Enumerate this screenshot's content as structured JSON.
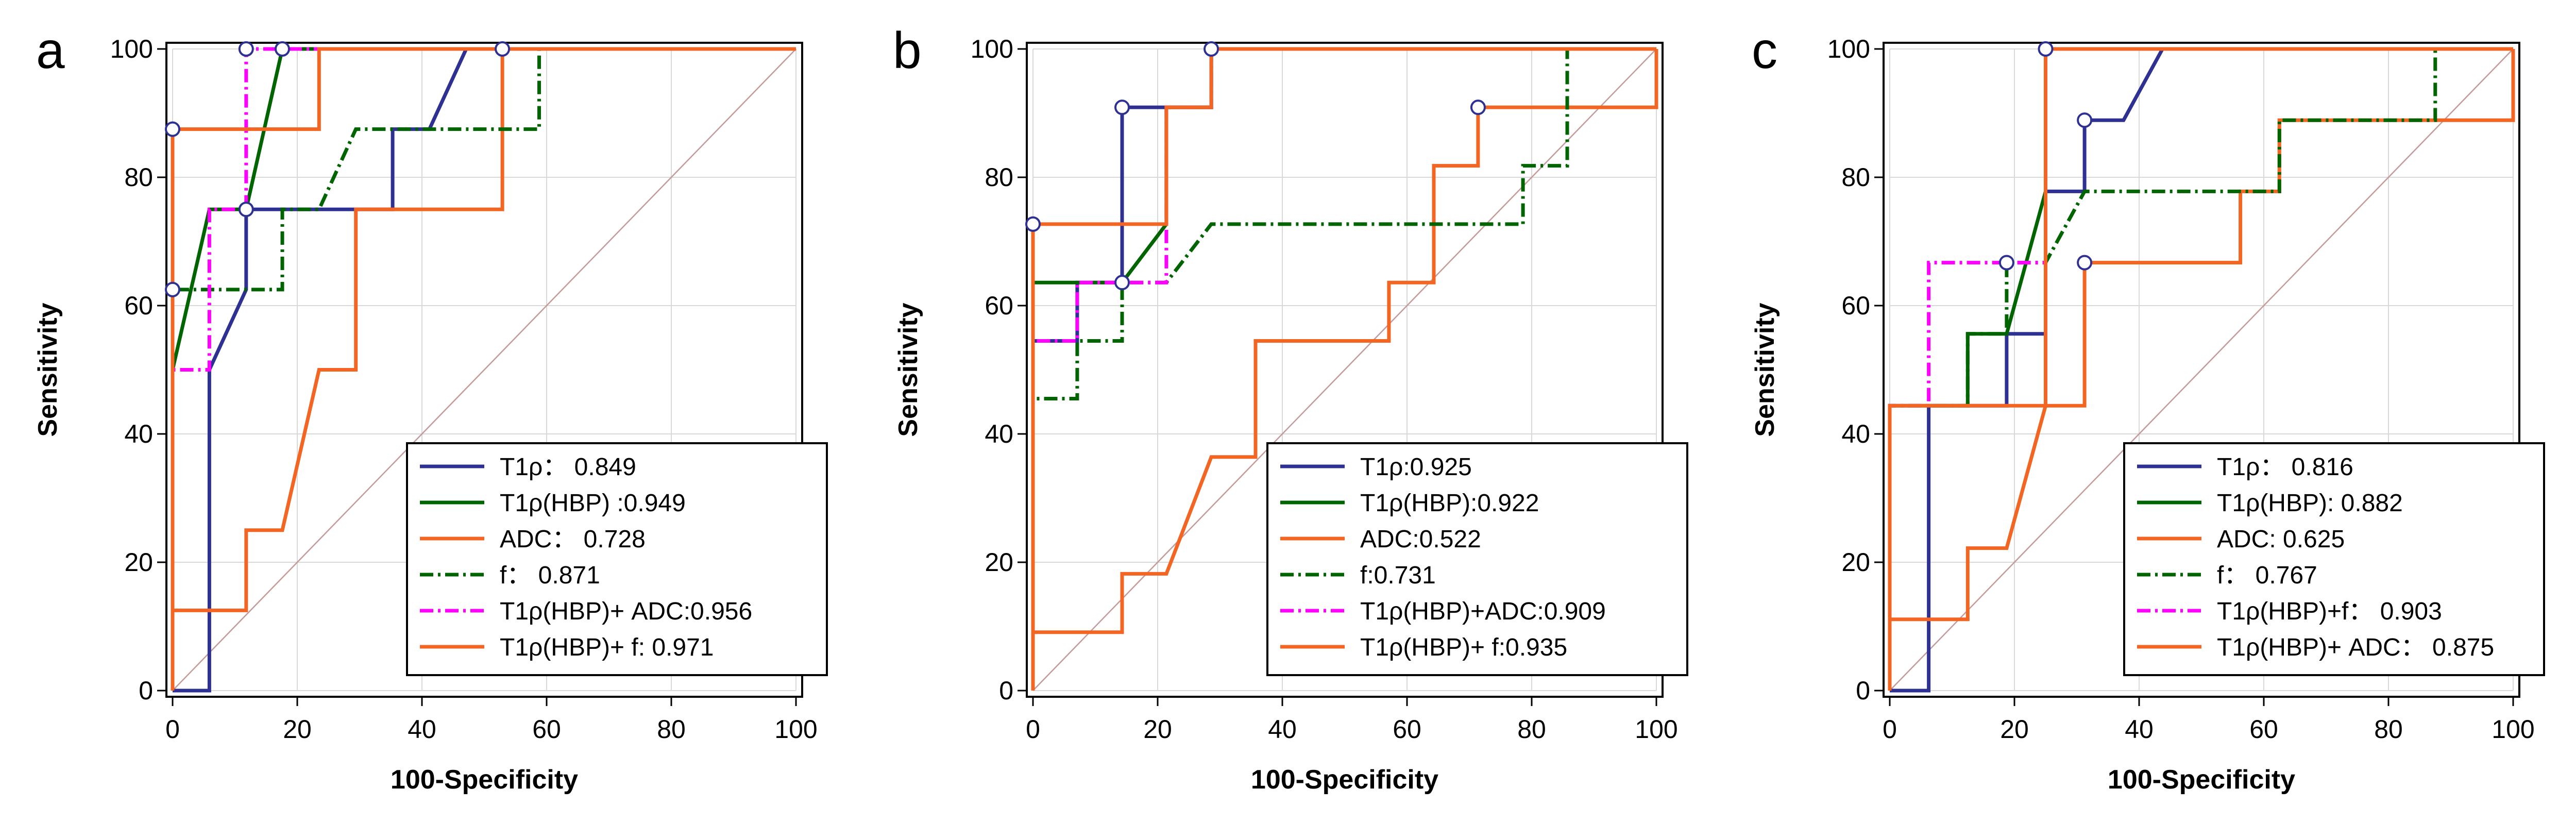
{
  "chart_data": [
    {
      "type": "line",
      "panel_label": "a",
      "xlabel": "100-Specificity",
      "ylabel": "Sensitivity",
      "xlim": [
        0,
        100
      ],
      "ylim": [
        0,
        100
      ],
      "xticks": [
        "0",
        "20",
        "40",
        "60",
        "80",
        "100"
      ],
      "yticks": [
        "0",
        "20",
        "40",
        "60",
        "80",
        "100"
      ],
      "grid": true,
      "legend_position": "bottom-right",
      "reference_line": [
        [
          0,
          0
        ],
        [
          100,
          100
        ]
      ],
      "series": [
        {
          "name": "T1ρ：   0.849",
          "color": "#2e3192",
          "dash": "solid",
          "points": [
            [
              0,
              0
            ],
            [
              5.9,
              0
            ],
            [
              5.9,
              50
            ],
            [
              11.8,
              62.5
            ],
            [
              11.8,
              75
            ],
            [
              35.3,
              75
            ],
            [
              35.3,
              87.5
            ],
            [
              41.2,
              87.5
            ],
            [
              47.1,
              100
            ],
            [
              100,
              100
            ]
          ],
          "markers": [
            [
              11.8,
              75
            ]
          ]
        },
        {
          "name": "T1ρ(HBP) :0.949",
          "color": "#006400",
          "dash": "solid",
          "points": [
            [
              0,
              0
            ],
            [
              0,
              50
            ],
            [
              5.9,
              75
            ],
            [
              11.8,
              75
            ],
            [
              17.6,
              100
            ],
            [
              100,
              100
            ]
          ],
          "markers": [
            [
              17.6,
              100
            ]
          ]
        },
        {
          "name": "ADC：   0.728",
          "color": "#f26522",
          "dash": "solid",
          "points": [
            [
              0,
              0
            ],
            [
              0,
              12.5
            ],
            [
              11.8,
              12.5
            ],
            [
              11.8,
              25
            ],
            [
              17.6,
              25
            ],
            [
              23.5,
              50
            ],
            [
              29.4,
              50
            ],
            [
              29.4,
              75
            ],
            [
              52.9,
              75
            ],
            [
              52.9,
              100
            ],
            [
              100,
              100
            ]
          ],
          "markers": [
            [
              52.9,
              100
            ]
          ]
        },
        {
          "name": "f：   0.871",
          "color": "#006400",
          "dash": "dashdot",
          "points": [
            [
              0,
              0
            ],
            [
              0,
              62.5
            ],
            [
              17.6,
              62.5
            ],
            [
              17.6,
              75
            ],
            [
              23.5,
              75
            ],
            [
              29.4,
              87.5
            ],
            [
              58.8,
              87.5
            ],
            [
              58.8,
              100
            ],
            [
              100,
              100
            ]
          ],
          "markers": [
            [
              0,
              62.5
            ]
          ]
        },
        {
          "name": "T1ρ(HBP)+ ADC:0.956",
          "color": "#ff00ff",
          "dash": "dashdot",
          "points": [
            [
              0,
              0
            ],
            [
              0,
              50
            ],
            [
              5.9,
              50
            ],
            [
              5.9,
              75
            ],
            [
              11.8,
              75
            ],
            [
              11.8,
              100
            ],
            [
              100,
              100
            ]
          ],
          "markers": [
            [
              11.8,
              100
            ]
          ]
        },
        {
          "name": "T1ρ(HBP)+ f: 0.971",
          "color": "#f26522",
          "dash": "solid",
          "points": [
            [
              0,
              0
            ],
            [
              0,
              87.5
            ],
            [
              23.5,
              87.5
            ],
            [
              23.5,
              100
            ],
            [
              100,
              100
            ]
          ],
          "markers": [
            [
              0,
              87.5
            ]
          ]
        }
      ]
    },
    {
      "type": "line",
      "panel_label": "b",
      "xlabel": "100-Specificity",
      "ylabel": "Sensitivity",
      "xlim": [
        0,
        100
      ],
      "ylim": [
        0,
        100
      ],
      "xticks": [
        "0",
        "20",
        "40",
        "60",
        "80",
        "100"
      ],
      "yticks": [
        "0",
        "20",
        "40",
        "60",
        "80",
        "100"
      ],
      "grid": true,
      "legend_position": "bottom-right",
      "reference_line": [
        [
          0,
          0
        ],
        [
          100,
          100
        ]
      ],
      "series": [
        {
          "name": "T1ρ:0.925",
          "color": "#2e3192",
          "dash": "solid",
          "points": [
            [
              0,
              0
            ],
            [
              0,
              54.5
            ],
            [
              7.1,
              54.5
            ],
            [
              7.1,
              63.6
            ],
            [
              14.3,
              63.6
            ],
            [
              14.3,
              90.9
            ],
            [
              28.6,
              90.9
            ],
            [
              28.6,
              100
            ],
            [
              35.7,
              100
            ],
            [
              100,
              100
            ]
          ],
          "markers": [
            [
              14.3,
              90.9
            ]
          ]
        },
        {
          "name": "T1ρ(HBP):0.922",
          "color": "#006400",
          "dash": "solid",
          "points": [
            [
              0,
              0
            ],
            [
              0,
              63.6
            ],
            [
              14.3,
              63.6
            ],
            [
              21.4,
              72.7
            ],
            [
              21.4,
              90.9
            ],
            [
              28.6,
              90.9
            ],
            [
              28.6,
              100
            ],
            [
              100,
              100
            ]
          ],
          "markers": [
            [
              14.3,
              63.6
            ]
          ]
        },
        {
          "name": "ADC:0.522",
          "color": "#f26522",
          "dash": "solid",
          "points": [
            [
              0,
              0
            ],
            [
              0,
              9.1
            ],
            [
              14.3,
              9.1
            ],
            [
              14.3,
              18.2
            ],
            [
              21.4,
              18.2
            ],
            [
              28.6,
              36.4
            ],
            [
              35.7,
              36.4
            ],
            [
              35.7,
              54.5
            ],
            [
              57.1,
              54.5
            ],
            [
              57.1,
              63.6
            ],
            [
              64.3,
              63.6
            ],
            [
              64.3,
              81.8
            ],
            [
              71.4,
              81.8
            ],
            [
              71.4,
              90.9
            ],
            [
              100,
              90.9
            ],
            [
              100,
              100
            ]
          ],
          "markers": [
            [
              71.4,
              90.9
            ]
          ]
        },
        {
          "name": "f:0.731",
          "color": "#006400",
          "dash": "dashdot",
          "points": [
            [
              0,
              0
            ],
            [
              0,
              45.5
            ],
            [
              7.1,
              45.5
            ],
            [
              7.1,
              54.5
            ],
            [
              14.3,
              54.5
            ],
            [
              14.3,
              63.6
            ],
            [
              21.4,
              63.6
            ],
            [
              28.6,
              72.7
            ],
            [
              78.6,
              72.7
            ],
            [
              78.6,
              81.8
            ],
            [
              85.7,
              81.8
            ],
            [
              85.7,
              100
            ],
            [
              100,
              100
            ]
          ],
          "markers": []
        },
        {
          "name": "T1ρ(HBP)+ADC:0.909",
          "color": "#ff00ff",
          "dash": "dashdot",
          "points": [
            [
              0,
              0
            ],
            [
              0,
              54.5
            ],
            [
              7.1,
              54.5
            ],
            [
              7.1,
              63.6
            ],
            [
              21.4,
              63.6
            ],
            [
              21.4,
              90.9
            ],
            [
              28.6,
              90.9
            ],
            [
              28.6,
              100
            ],
            [
              100,
              100
            ]
          ],
          "markers": []
        },
        {
          "name": "T1ρ(HBP)+ f:0.935",
          "color": "#f26522",
          "dash": "solid",
          "points": [
            [
              0,
              0
            ],
            [
              0,
              72.7
            ],
            [
              21.4,
              72.7
            ],
            [
              21.4,
              90.9
            ],
            [
              28.6,
              90.9
            ],
            [
              28.6,
              100
            ],
            [
              100,
              100
            ]
          ],
          "markers": [
            [
              0,
              72.7
            ],
            [
              28.6,
              100
            ]
          ]
        }
      ]
    },
    {
      "type": "line",
      "panel_label": "c",
      "xlabel": "100-Specificity",
      "ylabel": "Sensitivity",
      "xlim": [
        0,
        100
      ],
      "ylim": [
        0,
        100
      ],
      "xticks": [
        "0",
        "20",
        "40",
        "60",
        "80",
        "100"
      ],
      "yticks": [
        "0",
        "20",
        "40",
        "60",
        "80",
        "100"
      ],
      "grid": true,
      "legend_position": "bottom-right",
      "reference_line": [
        [
          0,
          0
        ],
        [
          100,
          100
        ]
      ],
      "series": [
        {
          "name": "T1ρ：  0.816",
          "color": "#2e3192",
          "dash": "solid",
          "points": [
            [
              0,
              0
            ],
            [
              6.25,
              0
            ],
            [
              6.25,
              44.4
            ],
            [
              18.75,
              44.4
            ],
            [
              18.75,
              55.6
            ],
            [
              25,
              55.6
            ],
            [
              25,
              77.8
            ],
            [
              31.25,
              77.8
            ],
            [
              31.25,
              88.9
            ],
            [
              37.5,
              88.9
            ],
            [
              43.75,
              100
            ],
            [
              100,
              100
            ]
          ],
          "markers": [
            [
              31.25,
              88.9
            ]
          ]
        },
        {
          "name": "T1ρ(HBP): 0.882",
          "color": "#006400",
          "dash": "solid",
          "points": [
            [
              0,
              0
            ],
            [
              0,
              44.4
            ],
            [
              12.5,
              44.4
            ],
            [
              12.5,
              55.6
            ],
            [
              18.75,
              55.6
            ],
            [
              25,
              77.8
            ],
            [
              25,
              100
            ],
            [
              100,
              100
            ]
          ],
          "markers": []
        },
        {
          "name": "ADC: 0.625",
          "color": "#f26522",
          "dash": "solid",
          "points": [
            [
              0,
              0
            ],
            [
              0,
              11.1
            ],
            [
              12.5,
              11.1
            ],
            [
              12.5,
              22.2
            ],
            [
              18.75,
              22.2
            ],
            [
              25,
              44.4
            ],
            [
              31.25,
              44.4
            ],
            [
              31.25,
              66.7
            ],
            [
              56.25,
              66.7
            ],
            [
              56.25,
              77.8
            ],
            [
              62.5,
              77.8
            ],
            [
              62.5,
              88.9
            ],
            [
              100,
              88.9
            ],
            [
              100,
              100
            ]
          ],
          "markers": [
            [
              31.25,
              66.7
            ]
          ]
        },
        {
          "name": "f：   0.767",
          "color": "#006400",
          "dash": "dashdot",
          "points": [
            [
              0,
              0
            ],
            [
              0,
              44.4
            ],
            [
              12.5,
              44.4
            ],
            [
              12.5,
              55.6
            ],
            [
              18.75,
              55.6
            ],
            [
              18.75,
              66.7
            ],
            [
              25,
              66.7
            ],
            [
              31.25,
              77.8
            ],
            [
              62.5,
              77.8
            ],
            [
              62.5,
              88.9
            ],
            [
              87.5,
              88.9
            ],
            [
              87.5,
              100
            ],
            [
              100,
              100
            ]
          ],
          "markers": []
        },
        {
          "name": "T1ρ(HBP)+f：  0.903",
          "color": "#ff00ff",
          "dash": "dashdot",
          "points": [
            [
              0,
              0
            ],
            [
              0,
              44.4
            ],
            [
              6.25,
              44.4
            ],
            [
              6.25,
              66.7
            ],
            [
              25,
              66.7
            ],
            [
              25,
              100
            ],
            [
              100,
              100
            ]
          ],
          "markers": [
            [
              18.75,
              66.7
            ]
          ]
        },
        {
          "name": "T1ρ(HBP)+ ADC：  0.875",
          "color": "#f26522",
          "dash": "solid",
          "points": [
            [
              0,
              0
            ],
            [
              0,
              44.4
            ],
            [
              25,
              44.4
            ],
            [
              25,
              100
            ],
            [
              100,
              100
            ]
          ],
          "markers": [
            [
              25,
              100
            ]
          ]
        }
      ]
    }
  ]
}
